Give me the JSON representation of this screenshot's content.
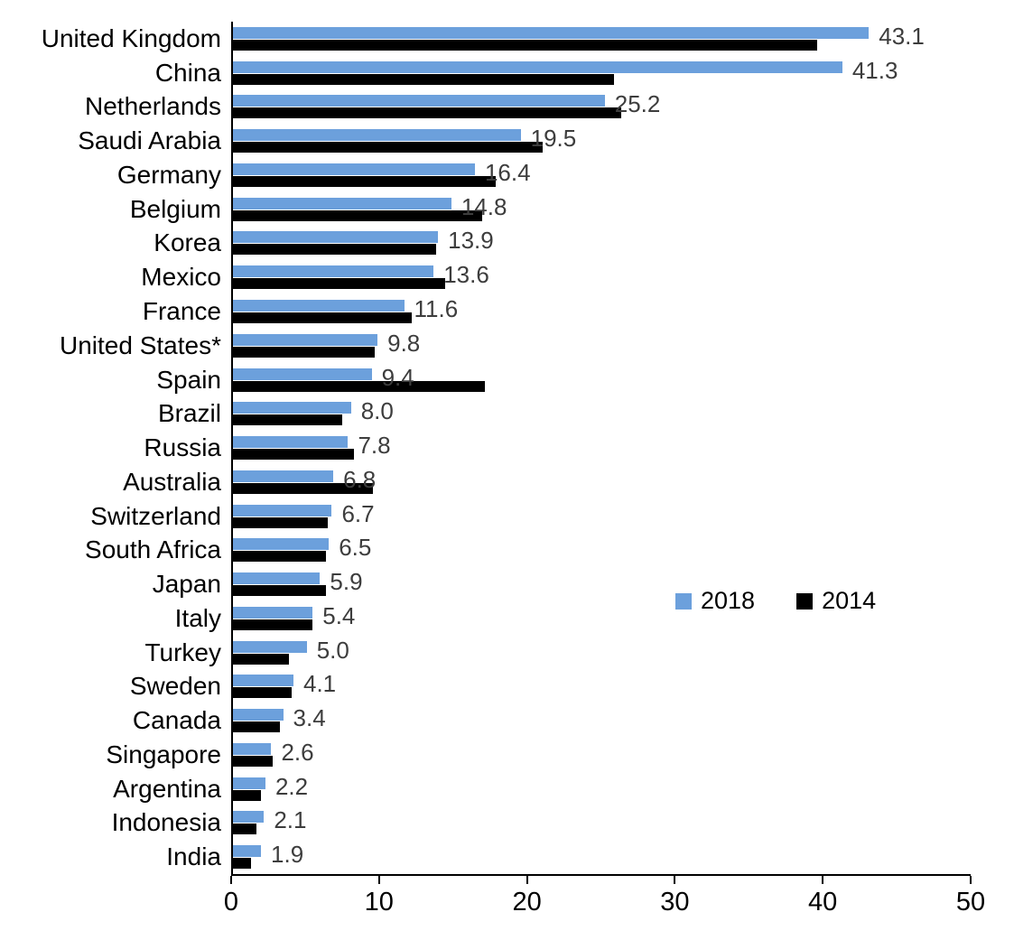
{
  "chart_data": {
    "type": "bar",
    "orientation": "horizontal",
    "title": "",
    "xlabel": "",
    "ylabel": "",
    "xlim": [
      0,
      50
    ],
    "x_ticks": [
      0,
      10,
      20,
      30,
      40,
      50
    ],
    "grid": false,
    "legend_position": "middle-right",
    "categories": [
      "United Kingdom",
      "China",
      "Netherlands",
      "Saudi Arabia",
      "Germany",
      "Belgium",
      "Korea",
      "Mexico",
      "France",
      "United States*",
      "Spain",
      "Brazil",
      "Russia",
      "Australia",
      "Switzerland",
      "South Africa",
      "Japan",
      "Italy",
      "Turkey",
      "Sweden",
      "Canada",
      "Singapore",
      "Argentina",
      "Indonesia",
      "India"
    ],
    "series": [
      {
        "name": "2018",
        "color": "#6CA0DC",
        "values": [
          43.1,
          41.3,
          25.2,
          19.5,
          16.4,
          14.8,
          13.9,
          13.6,
          11.6,
          9.8,
          9.4,
          8.0,
          7.8,
          6.8,
          6.7,
          6.5,
          5.9,
          5.4,
          5.0,
          4.1,
          3.4,
          2.6,
          2.2,
          2.1,
          1.9
        ]
      },
      {
        "name": "2014",
        "color": "#000000",
        "values": [
          39.6,
          25.8,
          26.3,
          21.0,
          17.8,
          16.9,
          13.8,
          14.4,
          12.1,
          9.6,
          17.1,
          7.4,
          8.2,
          9.5,
          6.4,
          6.3,
          6.3,
          5.4,
          3.8,
          4.0,
          3.2,
          2.7,
          1.9,
          1.6,
          1.2
        ]
      }
    ],
    "value_labels": [
      "43.1",
      "41.3",
      "25.2",
      "19.5",
      "16.4",
      "14.8",
      "13.9",
      "13.6",
      "11.6",
      "9.8",
      "9.4",
      "8.0",
      "7.8",
      "6.8",
      "6.7",
      "6.5",
      "5.9",
      "5.4",
      "5.0",
      "4.1",
      "3.4",
      "2.6",
      "2.2",
      "2.1",
      "1.9"
    ],
    "value_label_color": "#3d3d3d",
    "axis_color": "#000000"
  }
}
